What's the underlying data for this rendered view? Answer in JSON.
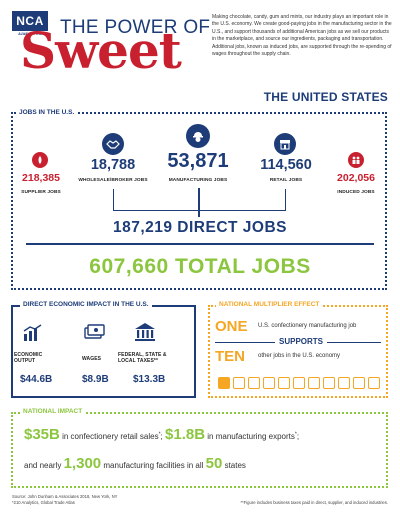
{
  "header": {
    "logo": "NCA",
    "logo_tagline": "ALWAYS A TREAT",
    "title_top": "THE POWER OF",
    "title_main": "Sweet",
    "intro": "Making chocolate, candy, gum and mints, our industry plays an important role in the U.S. economy. We create good-paying jobs in the manufacturing sector in the U.S., and support thousands of additional American jobs as we sell our products in the marketplace, and source our ingredients, packaging and transportation. Additional jobs, known as induced jobs, are supported through the re-spending of wages throughout the supply chain.",
    "country": "THE UNITED STATES"
  },
  "jobs": {
    "section_label": "JOBS IN THE U.S.",
    "supplier": {
      "value": "218,385",
      "label": "SUPPLIER JOBS"
    },
    "wholesale": {
      "value": "18,788",
      "label": "WHOLESALE/BROKER JOBS"
    },
    "manufacturing": {
      "value": "53,871",
      "label": "MANUFACTURING JOBS"
    },
    "retail": {
      "value": "114,560",
      "label": "RETAIL JOBS"
    },
    "induced": {
      "value": "202,056",
      "label": "INDUCED JOBS"
    },
    "direct_total": "187,219 DIRECT JOBS",
    "grand_total": "607,660 TOTAL JOBS"
  },
  "economic": {
    "section_label": "DIRECT ECONOMIC IMPACT IN THE U.S.",
    "output": {
      "label_1": "ECONOMIC",
      "label_2": "OUTPUT",
      "value": "$44.6B"
    },
    "wages": {
      "label": "WAGES",
      "value": "$8.9B"
    },
    "taxes": {
      "label_1": "FEDERAL, STATE &",
      "label_2": "LOCAL TAXES**",
      "value": "$13.3B"
    }
  },
  "multiplier": {
    "section_label": "NATIONAL MULTIPLIER EFFECT",
    "one": "ONE",
    "one_text": "U.S. confectionery manufacturing job",
    "supports": "SUPPORTS",
    "ten": "TEN",
    "ten_text": "other jobs in the U.S. economy"
  },
  "national": {
    "section_label": "NATIONAL IMPACT",
    "retail_value": "$35B",
    "retail_text": "in confectionery retail sales",
    "retail_mark": "*",
    "exports_value": "$1.8B",
    "exports_text": "in manufacturing exports",
    "exports_mark": "*",
    "line2_a": "and nearly",
    "facilities_value": "1,300",
    "line2_b": "manufacturing facilities in all",
    "states_value": "50",
    "line2_c": "states"
  },
  "footer": {
    "source": "Source: John Dunham & Associates 2018, New York, NY",
    "source2": "*210 Analytics, Global Trade Atlas",
    "note": "**Figure includes business taxes paid in direct, supplier, and induced industries."
  },
  "colors": {
    "navy": "#1d3c78",
    "red": "#c8202f",
    "green": "#8cc63f",
    "orange": "#f5a623"
  },
  "icons": [
    "supplier-icon",
    "handshake-icon",
    "worker-icon",
    "store-icon",
    "people-icon",
    "chart-icon",
    "cash-icon",
    "bank-icon",
    "worker-row-icon"
  ]
}
